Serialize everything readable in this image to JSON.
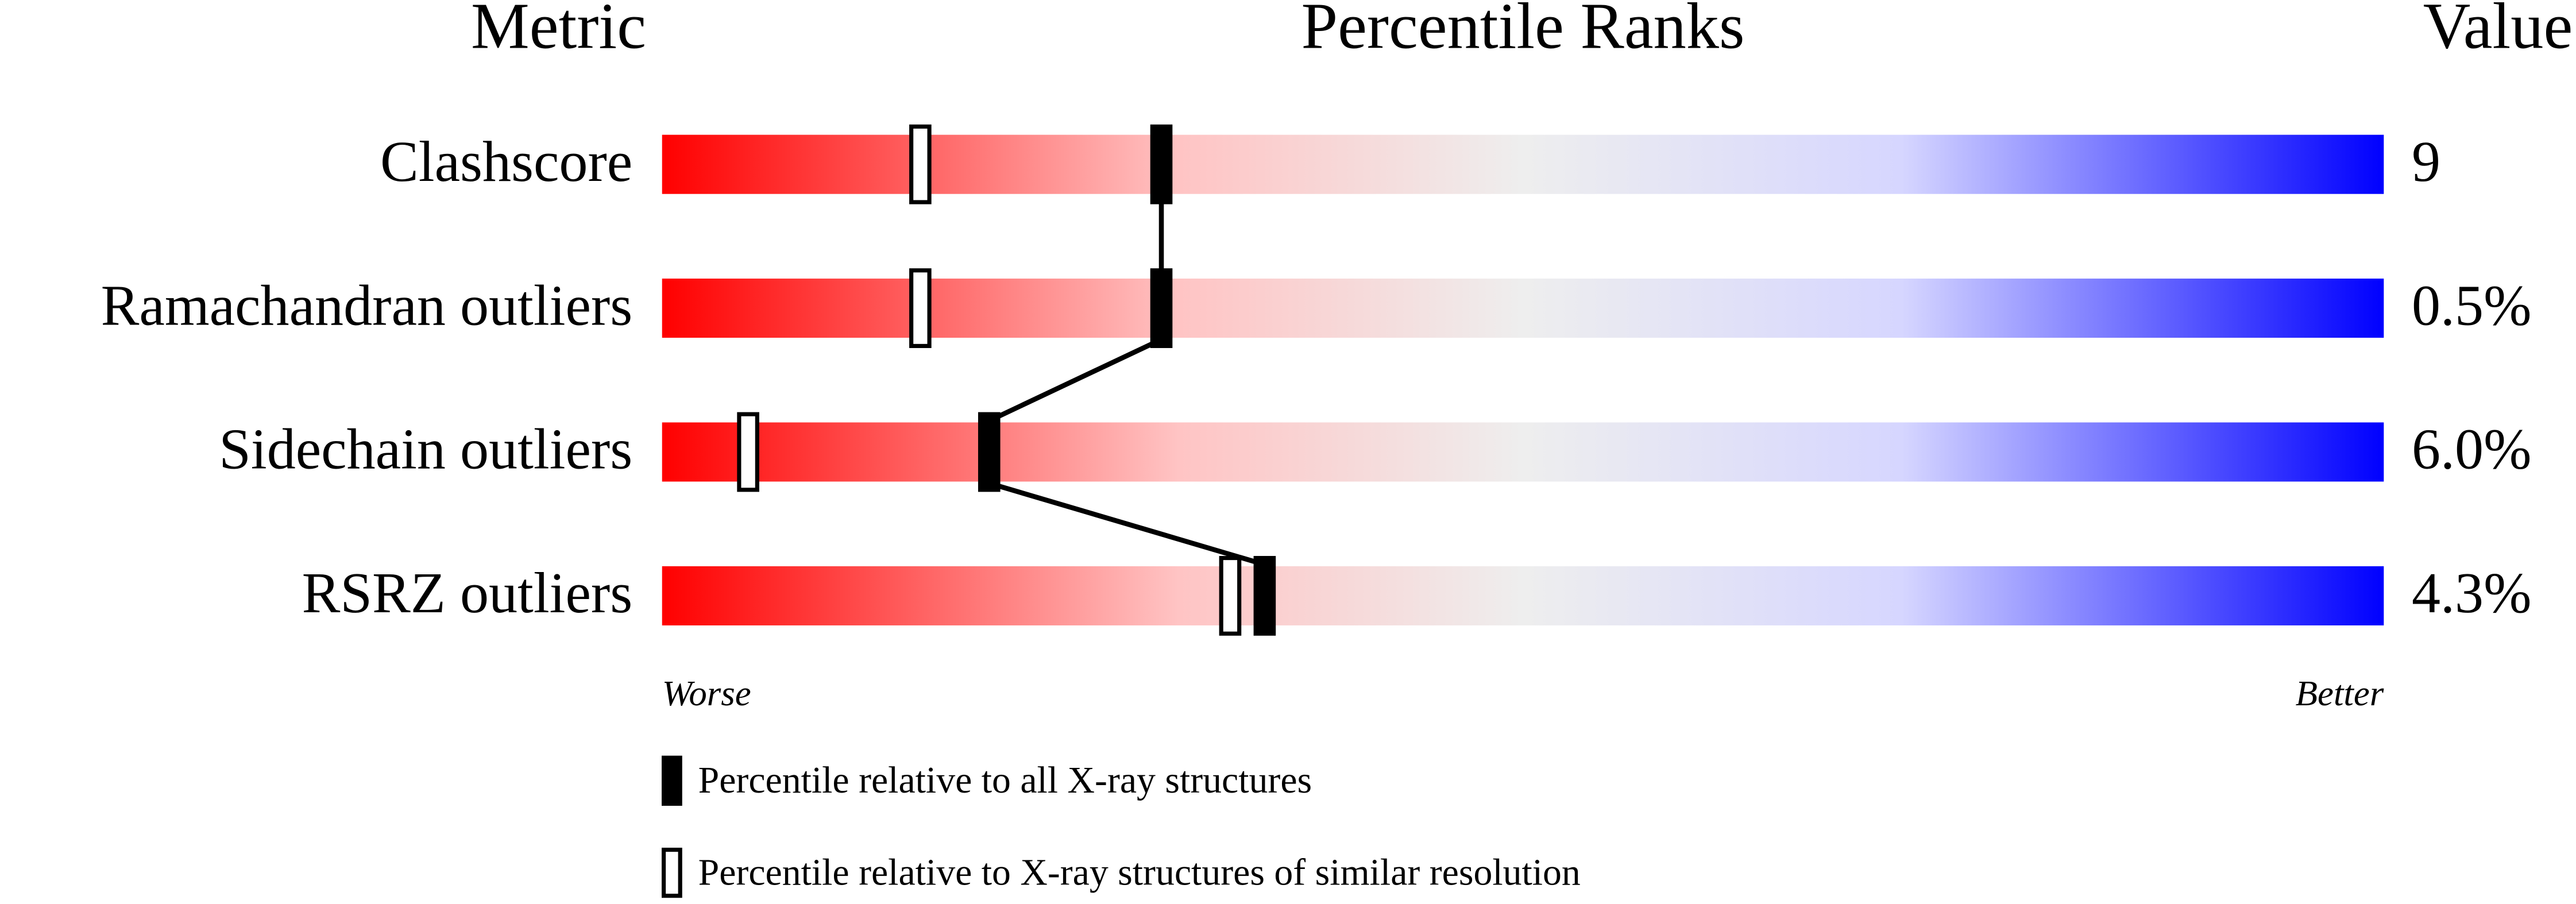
{
  "chart_data": {
    "type": "percentile",
    "headers": [
      "Metric",
      "Percentile Ranks",
      "Value"
    ],
    "categories": [
      "Clashscore",
      "Ramachandran outliers",
      "Sidechain outliers",
      "RSRZ outliers"
    ],
    "metric_values": [
      "9",
      "0.5%",
      "6.0%",
      "4.3%"
    ],
    "series": [
      {
        "name": "Percentile relative to all X-ray structures",
        "color": "#000000",
        "values": [
          29,
          29,
          19,
          35
        ]
      },
      {
        "name": "Percentile relative to X-ray structures of similar resolution",
        "color": "#ffffff",
        "values": [
          15,
          15,
          5,
          33
        ]
      }
    ],
    "xlim": [
      0,
      100
    ],
    "axis_labels": [
      "Worse",
      "Better"
    ]
  }
}
